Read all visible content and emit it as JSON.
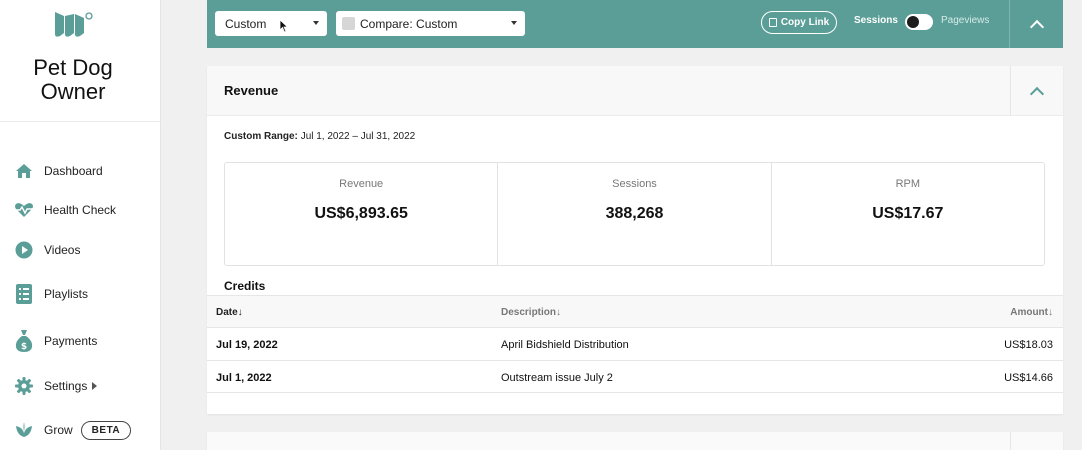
{
  "brand": {
    "site_name": "Pet Dog Owner",
    "accent": "#5a9e97"
  },
  "sidebar": {
    "items": [
      {
        "label": "Dashboard",
        "icon": "home-icon"
      },
      {
        "label": "Health Check",
        "icon": "heartbeat-icon"
      },
      {
        "label": "Videos",
        "icon": "play-icon"
      },
      {
        "label": "Playlists",
        "icon": "list-icon"
      },
      {
        "label": "Payments",
        "icon": "money-bag-icon"
      },
      {
        "label": "Settings",
        "icon": "gear-icon"
      },
      {
        "label": "Grow",
        "icon": "leaf-icon",
        "badge": "BETA"
      }
    ]
  },
  "filters": {
    "range_value": "Custom",
    "compare_value": "Compare: Custom",
    "copy_link_label": "Copy Link",
    "toggle_left": "Sessions",
    "toggle_right": "Pageviews"
  },
  "revenue": {
    "title": "Revenue",
    "range_label": "Custom Range:",
    "range_value": "Jul 1, 2022 – Jul 31, 2022",
    "stats": [
      {
        "label": "Revenue",
        "value": "US$6,893.65"
      },
      {
        "label": "Sessions",
        "value": "388,268"
      },
      {
        "label": "RPM",
        "value": "US$17.67"
      }
    ]
  },
  "credits": {
    "title": "Credits",
    "columns": [
      "Date↓",
      "Description↓",
      "Amount↓"
    ],
    "rows": [
      {
        "date": "Jul 19, 2022",
        "description": "April Bidshield Distribution",
        "amount": "US$18.03"
      },
      {
        "date": "Jul 1, 2022",
        "description": "Outstream issue July 2",
        "amount": "US$14.66"
      }
    ]
  }
}
